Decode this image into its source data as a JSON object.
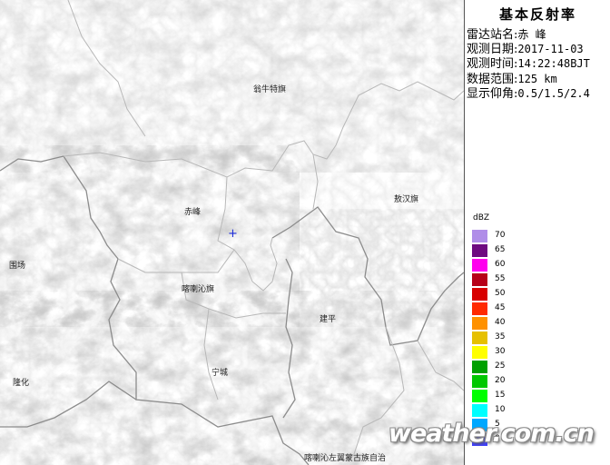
{
  "panel": {
    "title": "基本反射率",
    "rows": [
      {
        "label": "雷达站名:",
        "value": "赤 峰"
      },
      {
        "label": "观测日期:",
        "value": "2017-11-03"
      },
      {
        "label": "观测时间:",
        "value": "14:22:48BJT"
      },
      {
        "label": "数据范围:",
        "value": "125 km"
      },
      {
        "label": "显示仰角:",
        "value": "0.5/1.5/2.4"
      }
    ]
  },
  "legend": {
    "unit": "dBZ",
    "items": [
      {
        "value": "70",
        "color": "#b08de8"
      },
      {
        "value": "65",
        "color": "#6e0a80"
      },
      {
        "value": "60",
        "color": "#ff00ee"
      },
      {
        "value": "55",
        "color": "#b70018"
      },
      {
        "value": "50",
        "color": "#d80000"
      },
      {
        "value": "45",
        "color": "#ff2a00"
      },
      {
        "value": "40",
        "color": "#ff9100"
      },
      {
        "value": "35",
        "color": "#e6c000"
      },
      {
        "value": "30",
        "color": "#ffff00"
      },
      {
        "value": "25",
        "color": "#00a000"
      },
      {
        "value": "20",
        "color": "#00c800"
      },
      {
        "value": "15",
        "color": "#00ff00"
      },
      {
        "value": "10",
        "color": "#00ffff"
      },
      {
        "value": "5",
        "color": "#00a8ff"
      },
      {
        "value": "0",
        "color": "#4040ff"
      }
    ]
  },
  "map": {
    "site_marker": "+",
    "labels": {
      "wengniute": "翁牛特旗",
      "aohan": "敖汉旗",
      "chifeng": "赤峰",
      "weichang": "围场",
      "harqin": "喀喇沁旗",
      "jianping": "建平",
      "ningcheng": "宁城",
      "longhua": "隆化",
      "harqin_left": "喀喇沁左翼蒙古族自治"
    }
  },
  "watermark": "weather.com.cn"
}
